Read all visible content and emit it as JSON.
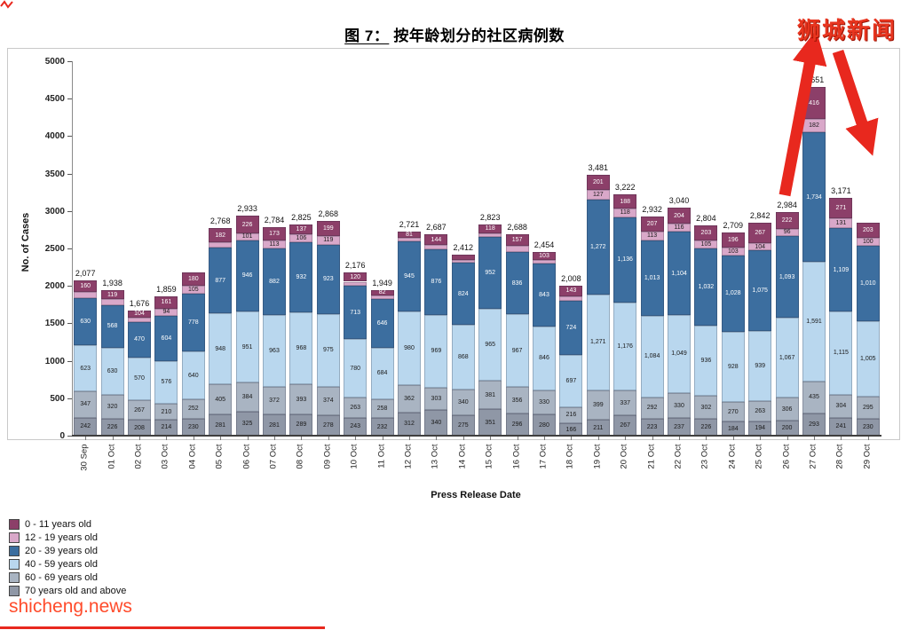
{
  "page": {
    "title_prefix": "图 7：",
    "title_text": "按年龄划分的社区病例数",
    "watermark_top": "狮城新闻",
    "watermark_bottom": "shicheng.news"
  },
  "chart_data": {
    "type": "bar",
    "stacked": true,
    "title": "图 7：按年龄划分的社区病例数",
    "xlabel": "Press Release Date",
    "ylabel": "No. of Cases",
    "ylim": [
      0,
      5000
    ],
    "ytick_step": 500,
    "ytick_labels": [
      "0",
      "500",
      "1000",
      "1500",
      "2000",
      "2500",
      "3000",
      "3500",
      "4000",
      "4500",
      "5000"
    ],
    "grid": false,
    "legend_position": "bottom-left",
    "categories": [
      "30 Sep",
      "01 Oct",
      "02 Oct",
      "03 Oct",
      "04 Oct",
      "05 Oct",
      "06 Oct",
      "07 Oct",
      "08 Oct",
      "09 Oct",
      "10 Oct",
      "11 Oct",
      "12 Oct",
      "13 Oct",
      "14 Oct",
      "15 Oct",
      "16 Oct",
      "17 Oct",
      "18 Oct",
      "19 Oct",
      "20 Oct",
      "21 Oct",
      "22 Oct",
      "23 Oct",
      "24 Oct",
      "25 Oct",
      "26 Oct",
      "27 Oct",
      "28 Oct",
      "29 Oct"
    ],
    "series": [
      {
        "key": "70plus",
        "name": "70 years old and above",
        "color": "#8F97A6",
        "label_color": "#1a1a1a",
        "values": [
          242,
          226,
          208,
          214,
          230,
          281,
          325,
          281,
          289,
          278,
          243,
          232,
          312,
          340,
          275,
          351,
          296,
          280,
          166,
          211,
          267,
          223,
          237,
          226,
          184,
          194,
          200,
          293,
          241,
          230
        ]
      },
      {
        "key": "60-69",
        "name": "60 - 69 years old",
        "color": "#A9B4C2",
        "label_color": "#1a1a1a",
        "values": [
          347,
          320,
          267,
          210,
          252,
          405,
          384,
          372,
          393,
          374,
          263,
          258,
          362,
          303,
          340,
          381,
          356,
          330,
          216,
          399,
          337,
          292,
          330,
          302,
          270,
          263,
          306,
          435,
          304,
          295
        ]
      },
      {
        "key": "40-59",
        "name": "40 - 59 years old",
        "color": "#B9D7EE",
        "label_color": "#1a1a1a",
        "values": [
          623,
          630,
          570,
          576,
          640,
          948,
          951,
          963,
          968,
          975,
          780,
          684,
          980,
          969,
          868,
          965,
          967,
          846,
          697,
          1271,
          1176,
          1084,
          1049,
          936,
          928,
          939,
          1067,
          1591,
          1115,
          1005
        ]
      },
      {
        "key": "20-39",
        "name": "20 - 39 years old",
        "color": "#3C6E9F",
        "label_color": "#ffffff",
        "values": [
          630,
          568,
          470,
          604,
          778,
          877,
          946,
          882,
          932,
          923,
          713,
          646,
          945,
          876,
          824,
          952,
          836,
          843,
          724,
          1272,
          1136,
          1013,
          1104,
          1032,
          1028,
          1075,
          1093,
          1734,
          1109,
          1010
        ]
      },
      {
        "key": "12-19",
        "name": "12 - 19 years old",
        "color": "#D9A8C9",
        "label_color": "#1a1a1a",
        "values": [
          75,
          75,
          57,
          94,
          105,
          75,
          101,
          113,
          106,
          119,
          57,
          47,
          41,
          55,
          35,
          56,
          76,
          52,
          62,
          127,
          118,
          113,
          116,
          105,
          103,
          104,
          96,
          182,
          131,
          100
        ]
      },
      {
        "key": "0-11",
        "name": "0 - 11 years old",
        "color": "#8C3F69",
        "label_color": "#ffffff",
        "values": [
          160,
          119,
          104,
          161,
          180,
          182,
          226,
          173,
          137,
          199,
          120,
          82,
          81,
          144,
          70,
          118,
          157,
          103,
          143,
          201,
          188,
          207,
          204,
          203,
          196,
          267,
          222,
          416,
          271,
          203
        ]
      }
    ],
    "total_labels": [
      "2,077",
      "1,938",
      "1,676",
      "1,859",
      "",
      "2,768",
      "2,933",
      "2,784",
      "2,825",
      "2,868",
      "2,176",
      "1,949",
      "2,721",
      "2,687",
      "2,412",
      "2,823",
      "2,688",
      "2,454",
      "2,008",
      "3,481",
      "3,222",
      "2,932",
      "3,040",
      "2,804",
      "2,709",
      "2,842",
      "2,984",
      "4,651",
      "3,171",
      ""
    ],
    "legend": [
      {
        "label": "0 - 11 years old",
        "color": "#8C3F69"
      },
      {
        "label": "12 - 19 years old",
        "color": "#D9A8C9"
      },
      {
        "label": "20 - 39 years old",
        "color": "#3C6E9F"
      },
      {
        "label": "40 - 59 years old",
        "color": "#B9D7EE"
      },
      {
        "label": "60 - 69 years old",
        "color": "#A9B4C2"
      },
      {
        "label": "70 years old and above",
        "color": "#8F97A6"
      }
    ],
    "annotations": {
      "arrow_color": "#E8281E",
      "up_arrow": {
        "from": [
          884,
          220
        ],
        "to": [
          914,
          62
        ]
      },
      "down_arrow": {
        "from": [
          944,
          58
        ],
        "to": [
          974,
          148
        ]
      }
    }
  }
}
